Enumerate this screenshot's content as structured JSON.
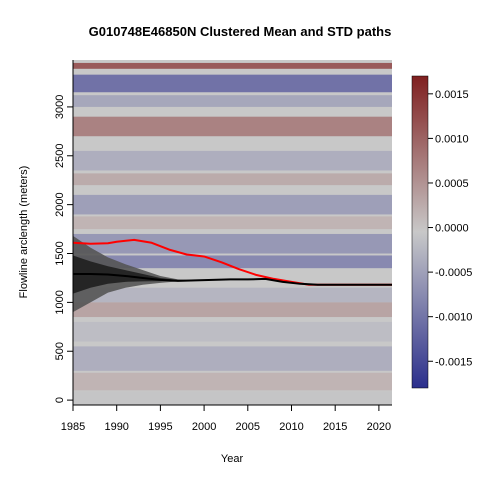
{
  "chart_data": {
    "type": "heatmap",
    "title": "G010748E46850N Clustered Mean and STD paths",
    "xlabel": "Year",
    "ylabel": "Flowline arclength (meters)",
    "xlim": [
      1985,
      2021.5
    ],
    "ylim": [
      -50,
      3480
    ],
    "x_ticks": [
      1985,
      1990,
      1995,
      2000,
      2005,
      2010,
      2015,
      2020
    ],
    "y_ticks": [
      0,
      500,
      1000,
      1500,
      2000,
      2500,
      3000
    ],
    "colorbar": {
      "range": [
        -0.0018,
        0.0017
      ],
      "ticks": [
        0.0015,
        0.001,
        0.0005,
        0.0,
        -0.0005,
        -0.001,
        -0.0015
      ],
      "tick_labels": [
        "0.0015",
        "0.0010",
        "0.0005",
        "0.0000",
        "-0.0005",
        "-0.0010",
        "-0.0015"
      ],
      "colors": [
        "#2b2f8c",
        "#c8c8c8",
        "#7f1f1f"
      ]
    },
    "heatmap_bands": [
      {
        "y_from": 3390,
        "y_to": 3450,
        "value": 0.0013
      },
      {
        "y_from": 3150,
        "y_to": 3330,
        "value": -0.0012
      },
      {
        "y_from": 3000,
        "y_to": 3120,
        "value": -0.0005
      },
      {
        "y_from": 2700,
        "y_to": 2900,
        "value": 0.0008
      },
      {
        "y_from": 2350,
        "y_to": 2550,
        "value": -0.0004
      },
      {
        "y_from": 2200,
        "y_to": 2320,
        "value": 0.0003
      },
      {
        "y_from": 1900,
        "y_to": 2100,
        "value": -0.0006
      },
      {
        "y_from": 1750,
        "y_to": 1880,
        "value": 0.0002
      },
      {
        "y_from": 1500,
        "y_to": 1700,
        "value": -0.0007
      },
      {
        "y_from": 1350,
        "y_to": 1480,
        "value": -0.0009
      },
      {
        "y_from": 1000,
        "y_to": 1150,
        "value": -0.0003
      },
      {
        "y_from": 850,
        "y_to": 1000,
        "value": 0.0004
      },
      {
        "y_from": 600,
        "y_to": 800,
        "value": -0.0002
      },
      {
        "y_from": 300,
        "y_to": 550,
        "value": -0.0004
      },
      {
        "y_from": 100,
        "y_to": 280,
        "value": 0.0002
      },
      {
        "y_from": -50,
        "y_to": 90,
        "value": -0.0001
      }
    ],
    "series": [
      {
        "color": "#ff0000",
        "x": [
          1985,
          1987,
          1989,
          1990,
          1992,
          1994,
          1996,
          1998,
          2000,
          2002,
          2004,
          2006,
          2008,
          2010,
          2012,
          2014,
          2016,
          2018,
          2020,
          2021.5
        ],
        "y": [
          1610,
          1600,
          1605,
          1620,
          1640,
          1610,
          1540,
          1490,
          1470,
          1410,
          1340,
          1280,
          1240,
          1210,
          1180,
          1180,
          1180,
          1180,
          1180,
          1180
        ]
      },
      {
        "color": "#000000",
        "x": [
          1985,
          1987,
          1989,
          1991,
          1993,
          1995,
          1997,
          1999,
          2001,
          2003,
          2005,
          2007,
          2009,
          2011,
          2013,
          2015,
          2017,
          2019,
          2021.5
        ],
        "y": [
          1290,
          1290,
          1285,
          1270,
          1250,
          1230,
          1220,
          1225,
          1230,
          1235,
          1235,
          1240,
          1210,
          1190,
          1180,
          1180,
          1180,
          1180,
          1180
        ]
      }
    ],
    "std_bands": [
      {
        "color": "#555555",
        "x": [
          1985,
          1987,
          1989,
          1991,
          1993,
          1995,
          1997,
          1999
        ],
        "y_low": [
          900,
          1000,
          1100,
          1150,
          1180,
          1200,
          1215,
          1225
        ],
        "y_high": [
          1680,
          1560,
          1460,
          1390,
          1330,
          1270,
          1235,
          1228
        ]
      },
      {
        "color": "#1f1f1f",
        "x": [
          1985,
          1987,
          1989,
          1991,
          1993,
          1995,
          1997,
          1999
        ],
        "y_low": [
          1090,
          1150,
          1190,
          1210,
          1215,
          1218,
          1220,
          1225
        ],
        "y_high": [
          1480,
          1420,
          1370,
          1330,
          1290,
          1250,
          1230,
          1228
        ]
      }
    ]
  }
}
